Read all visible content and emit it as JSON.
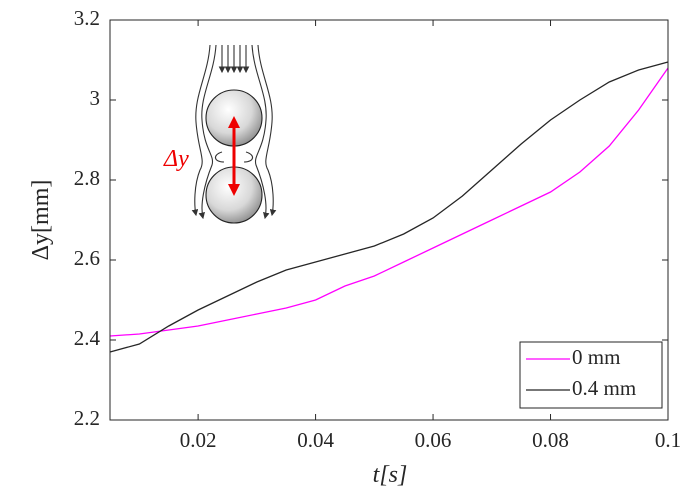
{
  "chart_data": {
    "type": "line",
    "x": [
      0.005,
      0.01,
      0.015,
      0.02,
      0.025,
      0.03,
      0.035,
      0.04,
      0.045,
      0.05,
      0.055,
      0.06,
      0.065,
      0.07,
      0.075,
      0.08,
      0.085,
      0.09,
      0.095,
      0.1
    ],
    "series": [
      {
        "name": "0 mm",
        "color": "#ff00ff",
        "values": [
          2.41,
          2.415,
          2.425,
          2.435,
          2.45,
          2.465,
          2.48,
          2.5,
          2.535,
          2.56,
          2.595,
          2.63,
          2.665,
          2.7,
          2.735,
          2.77,
          2.82,
          2.885,
          2.975,
          3.08
        ]
      },
      {
        "name": "0.4 mm",
        "color": "#262626",
        "values": [
          2.37,
          2.39,
          2.435,
          2.475,
          2.51,
          2.545,
          2.575,
          2.595,
          2.615,
          2.635,
          2.665,
          2.705,
          2.76,
          2.825,
          2.89,
          2.95,
          3.0,
          3.045,
          3.075,
          3.095
        ]
      }
    ],
    "xlim": [
      0.005,
      0.1
    ],
    "xticks": [
      0.02,
      0.04,
      0.06,
      0.08,
      0.1
    ],
    "ylim": [
      2.2,
      3.2
    ],
    "yticks": [
      2.2,
      2.4,
      2.6,
      2.8,
      3,
      3.2
    ],
    "x_label": "t[s]",
    "y_label": "Δy[mm]",
    "annotation": "Δy",
    "legend": "lower-right"
  }
}
